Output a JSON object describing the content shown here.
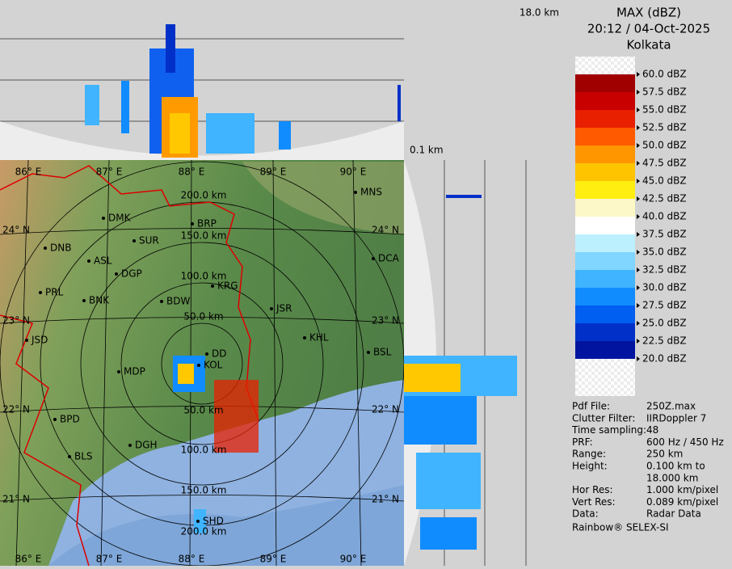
{
  "header": {
    "title": "MAX (dBZ)",
    "datetime": "20:12 / 04-Oct-2025",
    "station": "Kolkata"
  },
  "top_panel": {
    "height_top": "18.0 km",
    "height_bottom": "0.1 km"
  },
  "legend": {
    "labels": [
      "60.0 dBZ",
      "57.5 dBZ",
      "55.0 dBZ",
      "52.5 dBZ",
      "50.0 dBZ",
      "47.5 dBZ",
      "45.0 dBZ",
      "42.5 dBZ",
      "40.0 dBZ",
      "37.5 dBZ",
      "35.0 dBZ",
      "32.5 dBZ",
      "30.0 dBZ",
      "27.5 dBZ",
      "25.0 dBZ",
      "22.5 dBZ",
      "20.0 dBZ"
    ],
    "colors": [
      "#a00000",
      "#c80000",
      "#e82000",
      "#ff5a00",
      "#ff9600",
      "#ffc400",
      "#ffee10",
      "#fdf8c8",
      "#ffffff",
      "#bdf0ff",
      "#80d6ff",
      "#40b4ff",
      "#108cff",
      "#005ef0",
      "#0030c8",
      "#0014a0"
    ]
  },
  "info": [
    [
      "Pdf File:",
      "250Z.max"
    ],
    [
      "Clutter Filter:",
      "IIRDoppler 7"
    ],
    [
      "Time sampling:",
      "48"
    ],
    [
      "PRF:",
      "600 Hz / 450 Hz"
    ],
    [
      "Range:",
      "250 km"
    ],
    [
      "Height:",
      "0.100 km to"
    ],
    [
      "",
      "18.000 km"
    ],
    [
      "Hor Res:",
      "1.000 km/pixel"
    ],
    [
      "Vert Res:",
      "0.089 km/pixel"
    ],
    [
      "Data:",
      "Radar Data"
    ]
  ],
  "footer": "Rainbow® SELEX-SI",
  "map": {
    "lon_labels": [
      "86° E",
      "87° E",
      "88° E",
      "89° E",
      "90° E"
    ],
    "lat_labels": [
      "24° N",
      "23° N",
      "22° N",
      "21° N"
    ],
    "range_labels": [
      "200.0 km",
      "150.0 km",
      "100.0 km",
      "50.0 km",
      "50.0 km",
      "100.0 km",
      "150.0 km",
      "200.0 km"
    ],
    "cities": [
      "MNS",
      "DMK",
      "BRP",
      "DNB",
      "SUR",
      "ASL",
      "DGP",
      "DCA",
      "PRL",
      "KRG",
      "BNK",
      "BDW",
      "JSR",
      "JSD",
      "KHL",
      "DD",
      "KOL",
      "BSL",
      "MDP",
      "BPD",
      "DGH",
      "BLS",
      "SHD"
    ]
  }
}
